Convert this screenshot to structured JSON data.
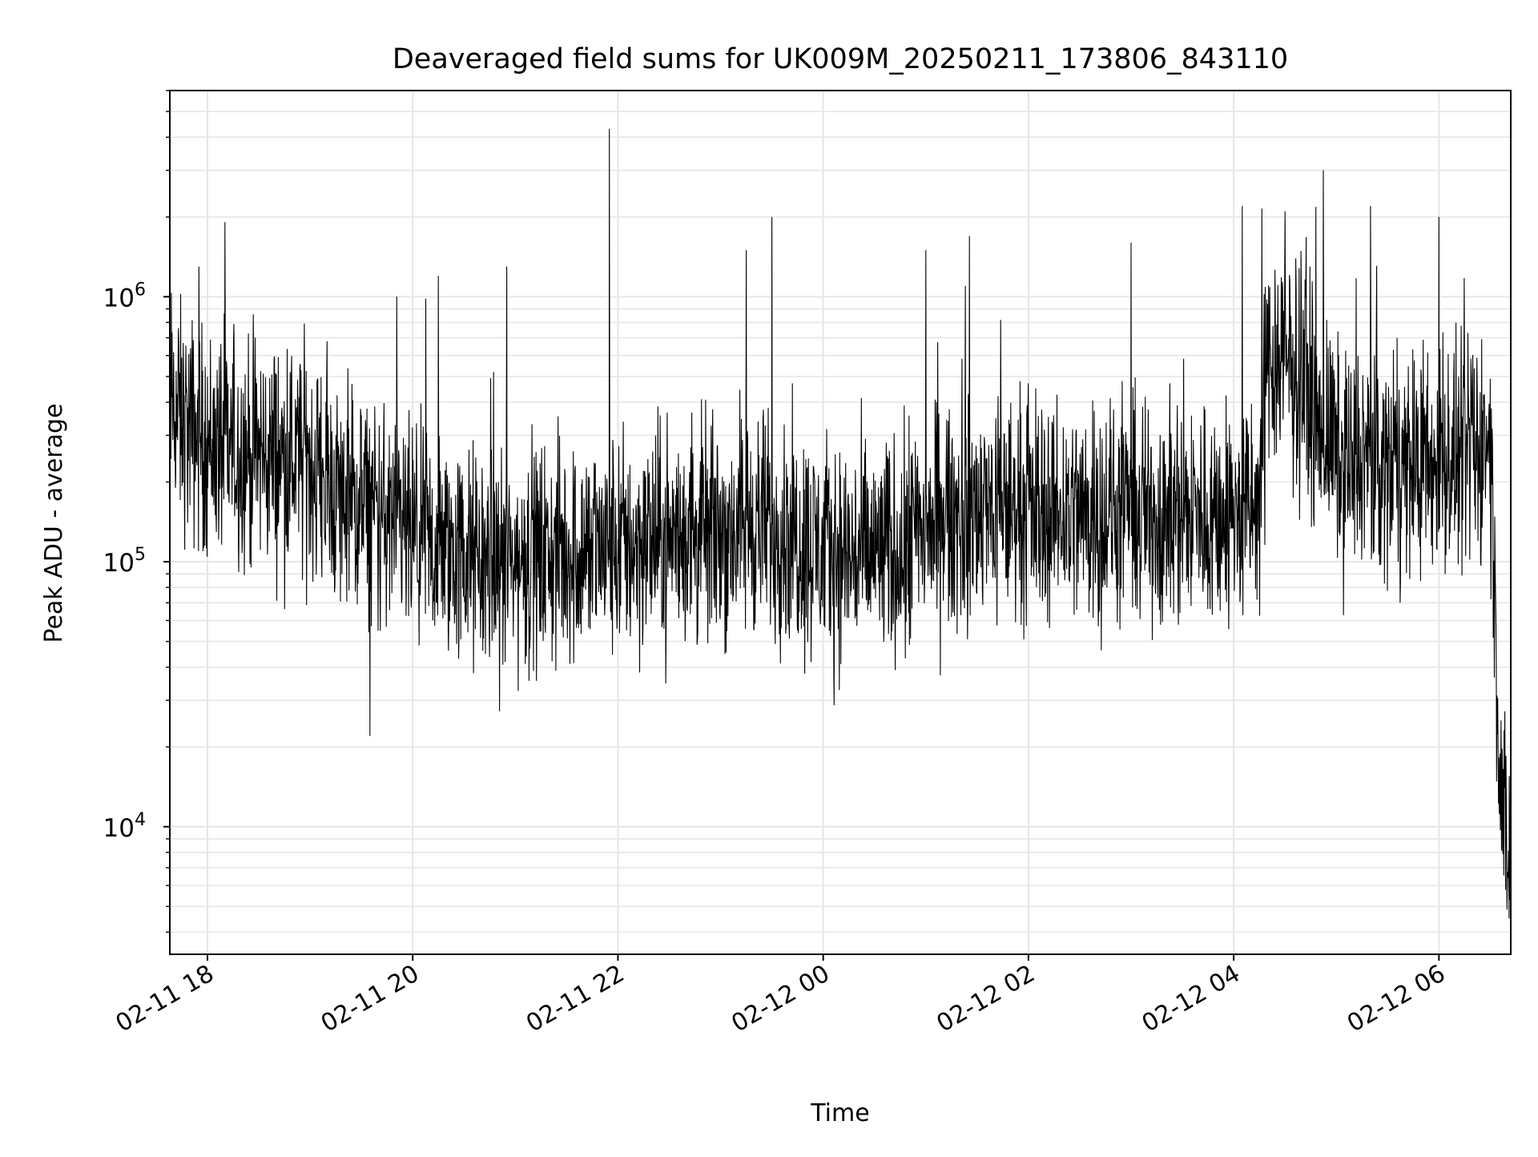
{
  "chart_data": {
    "type": "line",
    "title": "Deaveraged field sums for UK009M_20250211_173806_843110",
    "xlabel": "Time",
    "ylabel": "Peak ADU - average",
    "y_scale": "log",
    "grid": "on (major and minor)",
    "legend": "none",
    "line_color": "#000000",
    "grid_color": "#e6e6e6",
    "xlim": [
      "2025-02-11 17:38",
      "2025-02-12 06:42"
    ],
    "ylim": [
      3300,
      6000000
    ],
    "x_ticks": [
      {
        "label": "02-11 18",
        "time": "2025-02-11 18:00"
      },
      {
        "label": "02-11 20",
        "time": "2025-02-11 20:00"
      },
      {
        "label": "02-11 22",
        "time": "2025-02-11 22:00"
      },
      {
        "label": "02-12 00",
        "time": "2025-02-12 00:00"
      },
      {
        "label": "02-12 02",
        "time": "2025-02-12 02:00"
      },
      {
        "label": "02-12 04",
        "time": "2025-02-12 04:00"
      },
      {
        "label": "02-12 06",
        "time": "2025-02-12 06:00"
      }
    ],
    "y_ticks": [
      {
        "base": "10",
        "exp": "4",
        "value": 10000
      },
      {
        "base": "10",
        "exp": "5",
        "value": 100000
      },
      {
        "base": "10",
        "exp": "6",
        "value": 1000000
      }
    ],
    "series": [
      {
        "x": [
          "2025-02-11 17:38",
          "2025-02-11 17:48",
          "2025-02-11 18:00",
          "2025-02-11 18:20",
          "2025-02-11 18:40",
          "2025-02-11 19:00",
          "2025-02-11 19:10",
          "2025-02-11 19:20",
          "2025-02-11 19:40",
          "2025-02-11 20:00",
          "2025-02-11 20:20",
          "2025-02-11 20:40",
          "2025-02-11 21:00",
          "2025-02-11 21:20",
          "2025-02-11 21:40",
          "2025-02-11 22:00",
          "2025-02-11 22:20",
          "2025-02-11 22:40",
          "2025-02-11 23:00",
          "2025-02-11 23:20",
          "2025-02-11 23:40",
          "2025-02-12 00:00",
          "2025-02-12 00:20",
          "2025-02-12 00:40",
          "2025-02-12 01:00",
          "2025-02-12 01:20",
          "2025-02-12 01:40",
          "2025-02-12 02:00",
          "2025-02-12 02:20",
          "2025-02-12 02:40",
          "2025-02-12 03:00",
          "2025-02-12 03:20",
          "2025-02-12 03:40",
          "2025-02-12 04:00",
          "2025-02-12 04:15",
          "2025-02-12 04:20",
          "2025-02-12 04:40",
          "2025-02-12 05:00",
          "2025-02-12 05:20",
          "2025-02-12 05:40",
          "2025-02-12 06:00",
          "2025-02-12 06:20",
          "2025-02-12 06:30",
          "2025-02-12 06:35",
          "2025-02-12 06:40"
        ],
        "median": [
          400000,
          320000,
          280000,
          260000,
          250000,
          240000,
          200000,
          170000,
          150000,
          120000,
          110000,
          100000,
          100000,
          105000,
          110000,
          115000,
          120000,
          125000,
          130000,
          140000,
          130000,
          110000,
          105000,
          110000,
          130000,
          150000,
          160000,
          160000,
          155000,
          150000,
          150000,
          150000,
          150000,
          150000,
          160000,
          600000,
          500000,
          250000,
          230000,
          230000,
          230000,
          250000,
          300000,
          20000,
          7000
        ],
        "peaks": [
          {
            "x": "2025-02-11 17:55",
            "y": 1300000
          },
          {
            "x": "2025-02-11 19:35",
            "y": 22000
          },
          {
            "x": "2025-02-11 20:15",
            "y": 1200000
          },
          {
            "x": "2025-02-11 20:55",
            "y": 1300000
          },
          {
            "x": "2025-02-11 21:55",
            "y": 4300000
          },
          {
            "x": "2025-02-11 23:15",
            "y": 1500000
          },
          {
            "x": "2025-02-11 23:30",
            "y": 2000000
          },
          {
            "x": "2025-02-12 01:00",
            "y": 1500000
          },
          {
            "x": "2025-02-12 03:00",
            "y": 1600000
          },
          {
            "x": "2025-02-12 04:05",
            "y": 2200000
          },
          {
            "x": "2025-02-12 04:30",
            "y": 2100000
          },
          {
            "x": "2025-02-12 05:20",
            "y": 2200000
          },
          {
            "x": "2025-02-12 06:00",
            "y": 2000000
          },
          {
            "x": "2025-02-12 06:41",
            "y": 4500
          }
        ]
      }
    ]
  }
}
